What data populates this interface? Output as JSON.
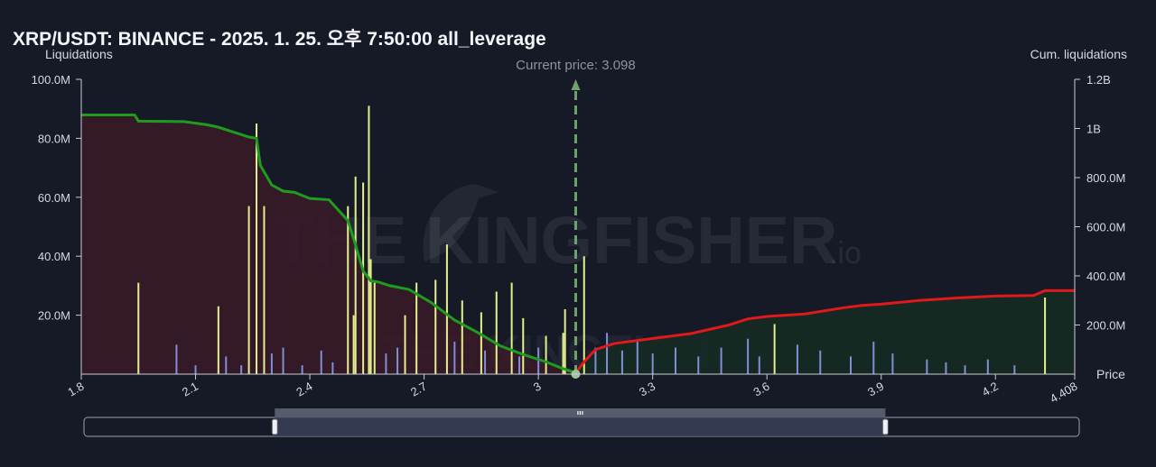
{
  "title": "XRP/USDT: BINANCE - 2025. 1. 25. 오후 7:50:00 all_leverage",
  "watermark": {
    "main": "THE KINGFISHER",
    "suffix": ".io"
  },
  "colors": {
    "background": "#161a27",
    "long_area": "#3a1a28",
    "short_area": "#152a22",
    "cum_long_line": "#1f9b1f",
    "cum_short_line": "#e0191b",
    "bar_yellow": "#e4f08e",
    "bar_blue": "#7f8fd6",
    "current_price_line": "#6fa36b"
  },
  "chart_data": {
    "type": "bar",
    "title": "XRP/USDT: BINANCE - 2025. 1. 25. 오후 7:50:00 all_leverage",
    "xlabel": "Price",
    "ylabel_left": "Liquidations",
    "ylabel_right": "Cum. liquidations",
    "xlim": [
      1.8,
      4.408
    ],
    "ylim_left": [
      0,
      100000000
    ],
    "ylim_right": [
      0,
      1200000000
    ],
    "x_ticks": [
      "1.8",
      "2.1",
      "2.4",
      "2.7",
      "3",
      "3.3",
      "3.6",
      "3.9",
      "4.2",
      "4.408"
    ],
    "y_left_ticks": [
      "20.0M",
      "40.0M",
      "60.0M",
      "80.0M",
      "100.0M"
    ],
    "y_right_ticks": [
      "200.0M",
      "400.0M",
      "600.0M",
      "800.0M",
      "1B",
      "1.2B"
    ],
    "current_price_label": "Current price: 3.098",
    "current_price": 3.098,
    "grid": false,
    "series": [
      {
        "name": "Cumulative long liquidations",
        "axis": "right",
        "x": [
          1.8,
          1.94,
          1.95,
          2.07,
          2.13,
          2.16,
          2.2,
          2.24,
          2.26,
          2.27,
          2.3,
          2.33,
          2.36,
          2.4,
          2.45,
          2.5,
          2.52,
          2.54,
          2.56,
          2.58,
          2.61,
          2.66,
          2.72,
          2.78,
          2.84,
          2.9,
          2.96,
          3.02,
          3.06,
          3.098
        ],
        "values": [
          1055000000,
          1055000000,
          1030000000,
          1028000000,
          1015000000,
          1005000000,
          985000000,
          965000000,
          960000000,
          850000000,
          770000000,
          745000000,
          740000000,
          715000000,
          710000000,
          625000000,
          525000000,
          420000000,
          380000000,
          375000000,
          360000000,
          345000000,
          290000000,
          220000000,
          170000000,
          115000000,
          80000000,
          50000000,
          25000000,
          5000000
        ]
      },
      {
        "name": "Cumulative short liquidations",
        "axis": "right",
        "x": [
          3.098,
          3.12,
          3.15,
          3.2,
          3.3,
          3.4,
          3.5,
          3.55,
          3.6,
          3.7,
          3.8,
          3.85,
          3.9,
          4.0,
          4.1,
          4.2,
          4.3,
          4.33,
          4.408
        ],
        "values": [
          5000000,
          50000000,
          100000000,
          125000000,
          145000000,
          165000000,
          200000000,
          225000000,
          235000000,
          245000000,
          270000000,
          280000000,
          285000000,
          300000000,
          310000000,
          318000000,
          320000000,
          340000000,
          340000000
        ]
      }
    ],
    "bars_yellow": [
      {
        "x": 1.95,
        "value": 31000000
      },
      {
        "x": 2.16,
        "value": 23000000
      },
      {
        "x": 2.24,
        "value": 57000000
      },
      {
        "x": 2.26,
        "value": 85000000
      },
      {
        "x": 2.28,
        "value": 57000000
      },
      {
        "x": 2.5,
        "value": 57000000
      },
      {
        "x": 2.52,
        "value": 67000000
      },
      {
        "x": 2.515,
        "value": 20000000
      },
      {
        "x": 2.54,
        "value": 65000000
      },
      {
        "x": 2.555,
        "value": 91000000
      },
      {
        "x": 2.56,
        "value": 39000000
      },
      {
        "x": 2.57,
        "value": 31000000
      },
      {
        "x": 2.65,
        "value": 20000000
      },
      {
        "x": 2.68,
        "value": 31000000
      },
      {
        "x": 2.73,
        "value": 32000000
      },
      {
        "x": 2.76,
        "value": 44000000
      },
      {
        "x": 2.8,
        "value": 25000000
      },
      {
        "x": 2.85,
        "value": 21000000
      },
      {
        "x": 2.89,
        "value": 28000000
      },
      {
        "x": 2.93,
        "value": 31000000
      },
      {
        "x": 2.96,
        "value": 19000000
      },
      {
        "x": 3.02,
        "value": 13000000
      },
      {
        "x": 3.065,
        "value": 14000000
      },
      {
        "x": 3.07,
        "value": 22000000
      },
      {
        "x": 3.12,
        "value": 40000000
      },
      {
        "x": 3.62,
        "value": 17000000
      },
      {
        "x": 4.33,
        "value": 26000000
      }
    ],
    "bars_blue": [
      {
        "x": 2.05,
        "value": 10000000
      },
      {
        "x": 2.1,
        "value": 3000000
      },
      {
        "x": 2.18,
        "value": 6000000
      },
      {
        "x": 2.22,
        "value": 3000000
      },
      {
        "x": 2.3,
        "value": 7000000
      },
      {
        "x": 2.33,
        "value": 9000000
      },
      {
        "x": 2.38,
        "value": 3000000
      },
      {
        "x": 2.43,
        "value": 8000000
      },
      {
        "x": 2.46,
        "value": 4000000
      },
      {
        "x": 2.6,
        "value": 7000000
      },
      {
        "x": 2.63,
        "value": 9000000
      },
      {
        "x": 2.78,
        "value": 11000000
      },
      {
        "x": 2.86,
        "value": 8000000
      },
      {
        "x": 2.95,
        "value": 6000000
      },
      {
        "x": 3.0,
        "value": 9000000
      },
      {
        "x": 3.15,
        "value": 9000000
      },
      {
        "x": 3.18,
        "value": 14000000
      },
      {
        "x": 3.22,
        "value": 8000000
      },
      {
        "x": 3.26,
        "value": 11000000
      },
      {
        "x": 3.3,
        "value": 7000000
      },
      {
        "x": 3.36,
        "value": 9000000
      },
      {
        "x": 3.42,
        "value": 6000000
      },
      {
        "x": 3.48,
        "value": 9000000
      },
      {
        "x": 3.55,
        "value": 12000000
      },
      {
        "x": 3.58,
        "value": 6000000
      },
      {
        "x": 3.68,
        "value": 10000000
      },
      {
        "x": 3.74,
        "value": 8000000
      },
      {
        "x": 3.82,
        "value": 6000000
      },
      {
        "x": 3.88,
        "value": 11000000
      },
      {
        "x": 3.93,
        "value": 7000000
      },
      {
        "x": 4.02,
        "value": 5000000
      },
      {
        "x": 4.07,
        "value": 4000000
      },
      {
        "x": 4.12,
        "value": 3000000
      },
      {
        "x": 4.18,
        "value": 5000000
      },
      {
        "x": 4.25,
        "value": 3000000
      }
    ]
  },
  "range_slider": {
    "range": [
      2.3,
      3.9
    ]
  }
}
